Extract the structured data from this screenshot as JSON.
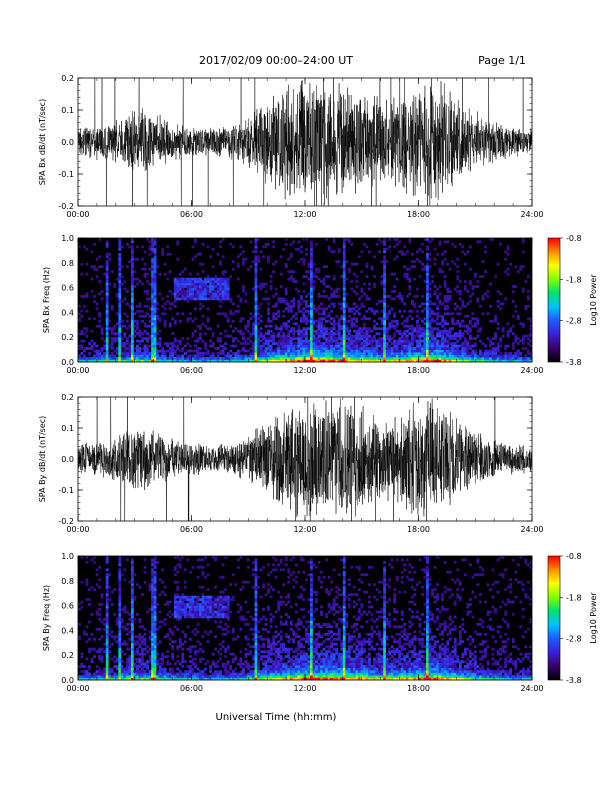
{
  "header": {
    "date_range": "2017/02/09  00:00–24:00 UT",
    "page": "Page 1/1"
  },
  "x_axis": {
    "label": "Universal Time (hh:mm)",
    "ticks": [
      "00:00",
      "06:00",
      "12:00",
      "18:00",
      "24:00"
    ],
    "range_hours": [
      0,
      24
    ]
  },
  "colorbar": {
    "label": "Log10 Power",
    "ticks": [
      "-0.8",
      "-1.8",
      "-2.8",
      "-3.8"
    ],
    "range": [
      -3.8,
      -0.8
    ],
    "colors": [
      "#000000",
      "#3a0066",
      "#3b1fd6",
      "#1e5bff",
      "#00bfff",
      "#00e070",
      "#7fff00",
      "#ffff00",
      "#ff8c00",
      "#ff0000"
    ]
  },
  "chart_data": [
    {
      "type": "line",
      "ylabel": "SPA Bx dB/dt (nT/sec)",
      "ylim": [
        -0.2,
        0.2
      ],
      "y_ticks": [
        "0.2",
        "0.1",
        "0.0",
        "-0.1",
        "-0.2"
      ],
      "color": "#000000",
      "envelope_hours": [
        0,
        1,
        2,
        3,
        4,
        5,
        6,
        7,
        8,
        9,
        10,
        11,
        12,
        13,
        14,
        15,
        16,
        17,
        18,
        19,
        20,
        21,
        22,
        23,
        24
      ],
      "envelope_amplitude": [
        0.05,
        0.06,
        0.07,
        0.12,
        0.1,
        0.06,
        0.05,
        0.05,
        0.06,
        0.08,
        0.15,
        0.19,
        0.22,
        0.22,
        0.2,
        0.17,
        0.15,
        0.16,
        0.2,
        0.22,
        0.15,
        0.1,
        0.07,
        0.05,
        0.05
      ]
    },
    {
      "type": "heatmap",
      "ylabel": "SPA Bx Freq (Hz)",
      "ylim": [
        0,
        1.0
      ],
      "y_ticks": [
        "1.0",
        "0.8",
        "0.6",
        "0.4",
        "0.2",
        "0.0"
      ],
      "value_range": [
        -3.8,
        -0.8
      ],
      "bright_lines_hours": [
        1.5,
        2.2,
        2.9,
        4.0,
        9.4,
        12.3,
        14.1,
        16.2,
        18.5
      ]
    },
    {
      "type": "line",
      "ylabel": "SPA By dB/dt (nT/sec)",
      "ylim": [
        -0.2,
        0.2
      ],
      "y_ticks": [
        "0.2",
        "0.1",
        "0.0",
        "-0.1",
        "-0.2"
      ],
      "color": "#000000",
      "envelope_hours": [
        0,
        1,
        2,
        3,
        4,
        5,
        6,
        7,
        8,
        9,
        10,
        11,
        12,
        13,
        14,
        15,
        16,
        17,
        18,
        19,
        20,
        21,
        22,
        23,
        24
      ],
      "envelope_amplitude": [
        0.05,
        0.06,
        0.08,
        0.12,
        0.1,
        0.07,
        0.06,
        0.05,
        0.06,
        0.08,
        0.14,
        0.18,
        0.22,
        0.22,
        0.21,
        0.18,
        0.15,
        0.16,
        0.2,
        0.22,
        0.15,
        0.1,
        0.07,
        0.05,
        0.05
      ]
    },
    {
      "type": "heatmap",
      "ylabel": "SPA By Freq (Hz)",
      "ylim": [
        0,
        1.0
      ],
      "y_ticks": [
        "1.0",
        "0.8",
        "0.6",
        "0.4",
        "0.2",
        "0.0"
      ],
      "value_range": [
        -3.8,
        -0.8
      ],
      "bright_lines_hours": [
        1.5,
        2.2,
        2.9,
        4.0,
        9.4,
        12.3,
        14.1,
        16.2,
        18.5
      ]
    }
  ]
}
